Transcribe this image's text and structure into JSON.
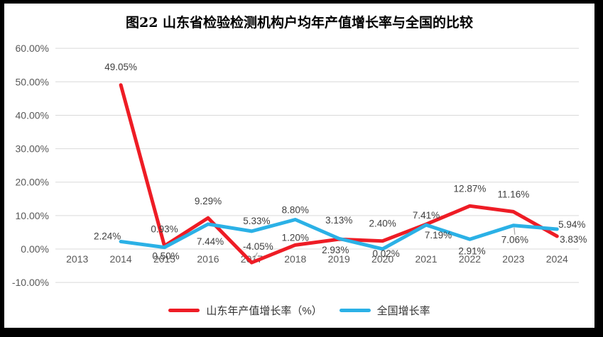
{
  "window": {
    "background": "#000000",
    "slide_background": "#ffffff"
  },
  "chart_data": {
    "type": "line",
    "title": "图22 山东省检验检测机构户均年产值增长率与全国的比较",
    "categories": [
      "2013",
      "2014",
      "2015",
      "2016",
      "2017",
      "2018",
      "2019",
      "2020",
      "2021",
      "2022",
      "2023",
      "2024"
    ],
    "series": [
      {
        "name": "山东年产值增长率（%）",
        "color": "#ee1c25",
        "values": [
          null,
          49.05,
          0.93,
          9.29,
          -4.05,
          1.2,
          2.93,
          2.4,
          7.41,
          12.87,
          11.16,
          3.83
        ],
        "labels": [
          "",
          "49.05%",
          "0.93%",
          "9.29%",
          "-4.05%",
          "1.20%",
          "2.93%",
          "2.40%",
          "7.41%",
          "12.87%",
          "11.16%",
          "3.83%"
        ],
        "label_offsets": [
          [
            0,
            0
          ],
          [
            0,
            -26
          ],
          [
            0,
            -24
          ],
          [
            0,
            -24
          ],
          [
            9,
            -23
          ],
          [
            0,
            -11
          ],
          [
            -5,
            15
          ],
          [
            0,
            -25
          ],
          [
            0,
            -13
          ],
          [
            0,
            -25
          ],
          [
            0,
            -25
          ],
          [
            23,
            4
          ]
        ]
      },
      {
        "name": "全国增长率",
        "color": "#2bb1e6",
        "values": [
          null,
          2.24,
          0.5,
          7.44,
          5.33,
          8.8,
          3.13,
          0.02,
          7.19,
          2.91,
          7.06,
          5.94
        ],
        "labels": [
          "",
          "2.24%",
          "0.50%",
          "7.44%",
          "5.33%",
          "8.80%",
          "3.13%",
          "0.02%",
          "7.19%",
          "2.91%",
          "7.06%",
          "5.94%"
        ],
        "label_offsets": [
          [
            0,
            0
          ],
          [
            -19,
            -8
          ],
          [
            2,
            12
          ],
          [
            3,
            24
          ],
          [
            7,
            -15
          ],
          [
            0,
            -14
          ],
          [
            0,
            -26
          ],
          [
            5,
            6
          ],
          [
            17,
            14
          ],
          [
            3,
            16
          ],
          [
            2,
            20
          ],
          [
            21,
            -7
          ]
        ]
      }
    ],
    "label_leaders": [
      {
        "series": 0,
        "index": 4,
        "from": [
          2,
          -3
        ],
        "to": [
          8,
          -14
        ]
      },
      {
        "series": 1,
        "index": 10,
        "from": [
          1,
          3
        ],
        "to": [
          2,
          13
        ]
      }
    ],
    "xlabel": "",
    "ylabel": "",
    "ylim": [
      -10,
      60
    ],
    "ytick_step": 10,
    "yticks": [
      "60.00%",
      "50.00%",
      "40.00%",
      "30.00%",
      "20.00%",
      "10.00%",
      "0.00%",
      "-10.00%"
    ],
    "grid": true,
    "legend_position": "bottom",
    "colors": {
      "gridline": "#d9d9d9",
      "tick_label": "#595959",
      "data_label": "#404040",
      "leader": "#a6a6a6"
    }
  }
}
